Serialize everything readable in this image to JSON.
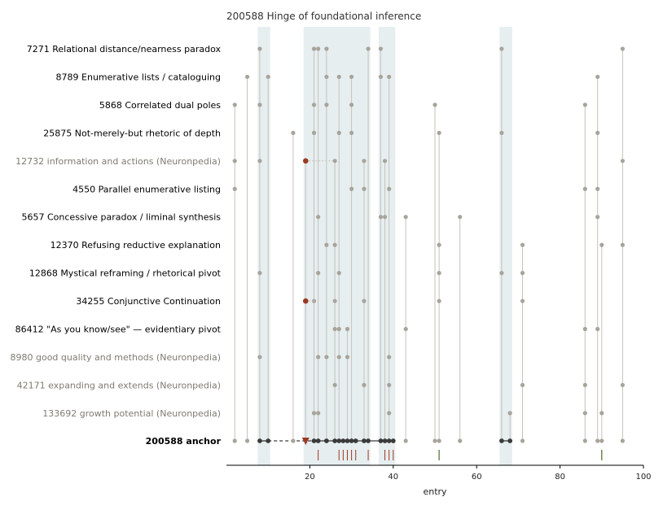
{
  "chart_data": {
    "type": "scatter",
    "title": "200588  Hinge of foundational inference",
    "xlabel": "entry",
    "xlim": [
      0,
      100
    ],
    "xticks": [
      "20",
      "40",
      "60",
      "80",
      "100"
    ],
    "highlight_bands": [
      [
        7.5,
        10.5
      ],
      [
        18.5,
        34.5
      ],
      [
        36.5,
        40.5
      ],
      [
        65.5,
        68.5
      ]
    ],
    "colors": {
      "band": "#e6eef0",
      "stem": "#c6c2ba",
      "point": "#a8a49b",
      "anchor_point": "#3a3a3a",
      "marker": "#9c3a22",
      "label": "#000000",
      "label_muted": "#7f7b72"
    },
    "rows": [
      {
        "label": "7271  Relational distance/nearness paradox",
        "muted": false,
        "points": [
          8,
          21,
          22,
          24,
          34,
          37,
          66,
          95
        ],
        "red": []
      },
      {
        "label": "8789  Enumerative lists / cataloguing",
        "muted": false,
        "points": [
          5,
          10,
          24,
          27,
          30,
          37,
          39,
          89
        ],
        "red": []
      },
      {
        "label": "5868  Correlated dual poles",
        "muted": false,
        "points": [
          2,
          8,
          21,
          24,
          30,
          50,
          86
        ],
        "red": []
      },
      {
        "label": "25875  Not-merely-but rhetoric of depth",
        "muted": false,
        "points": [
          16,
          21,
          27,
          30,
          51,
          66,
          89
        ],
        "red": []
      },
      {
        "label": "12732  information and actions (Neuronpedia)",
        "muted": true,
        "points": [
          2,
          8,
          26,
          33,
          38,
          95
        ],
        "red": [
          19
        ]
      },
      {
        "label": "4550  Parallel enumerative listing",
        "muted": false,
        "points": [
          2,
          30,
          33,
          39,
          86,
          89
        ],
        "red": []
      },
      {
        "label": "5657  Concessive paradox / liminal synthesis",
        "muted": false,
        "points": [
          22,
          37,
          38,
          43,
          56,
          89
        ],
        "red": []
      },
      {
        "label": "12370  Refusing reductive explanation",
        "muted": false,
        "points": [
          24,
          26,
          51,
          71,
          90,
          95
        ],
        "red": []
      },
      {
        "label": "12868  Mystical reframing / rhetorical pivot",
        "muted": false,
        "points": [
          8,
          22,
          27,
          51,
          66,
          71
        ],
        "red": []
      },
      {
        "label": "34255  Conjunctive Continuation",
        "muted": false,
        "points": [
          21,
          26,
          33,
          51,
          71
        ],
        "red": [
          19
        ]
      },
      {
        "label": "86412  \"As you know/see\" — evidentiary pivot",
        "muted": false,
        "points": [
          26,
          27,
          29,
          43,
          86,
          89
        ],
        "red": []
      },
      {
        "label": "8980  good quality and methods (Neuronpedia)",
        "muted": true,
        "points": [
          8,
          22,
          24,
          27,
          29,
          39
        ],
        "red": []
      },
      {
        "label": "42171  expanding and extends (Neuronpedia)",
        "muted": true,
        "points": [
          26,
          33,
          39,
          71,
          86,
          95
        ],
        "red": []
      },
      {
        "label": "133692  growth potential (Neuronpedia)",
        "muted": true,
        "points": [
          21,
          22,
          39,
          68,
          86,
          90
        ],
        "red": []
      }
    ],
    "anchor": {
      "label": "200588  anchor",
      "light_points": [
        2,
        5,
        16,
        43,
        50,
        51,
        56,
        71,
        86,
        89,
        90,
        95
      ],
      "dark_points": [
        8,
        10,
        21,
        22,
        24,
        26,
        27,
        28,
        29,
        30,
        31,
        33,
        34,
        37,
        38,
        39,
        40,
        66,
        68
      ],
      "marker": 19,
      "dashed_from": 10,
      "dashed_to": 21
    },
    "rug": {
      "short": [
        22,
        27,
        28,
        29,
        30,
        31,
        34,
        38,
        39,
        40
      ],
      "long": [
        51,
        90
      ]
    }
  }
}
